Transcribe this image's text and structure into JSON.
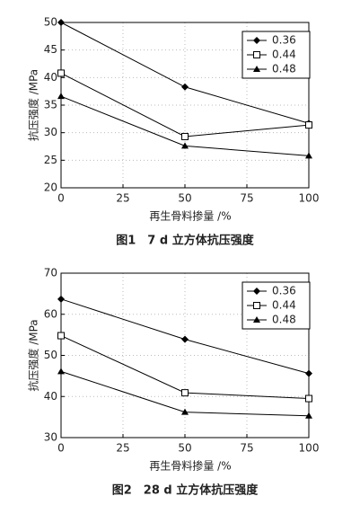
{
  "chart_data": [
    {
      "type": "line",
      "title": "图1　7 d 立方体抗压强度",
      "x_label": "再生骨料掺量 /%",
      "y_label": "抗压强度 /MPa",
      "x": [
        0,
        50,
        100
      ],
      "xlim": [
        0,
        100
      ],
      "xticks": [
        0,
        25,
        50,
        75,
        100
      ],
      "ylim": [
        20,
        50
      ],
      "yticks": [
        20,
        25,
        30,
        35,
        40,
        45,
        50
      ],
      "grid": true,
      "legend": "upper right",
      "series": [
        {
          "name": "0.36",
          "color": "#000000",
          "marker": "diamond",
          "values": [
            50,
            38.3,
            31.7
          ]
        },
        {
          "name": "0.44",
          "color": "#000000",
          "marker": "square",
          "values": [
            40.8,
            29.3,
            31.4
          ]
        },
        {
          "name": "0.48",
          "color": "#000000",
          "marker": "triangle",
          "values": [
            36.6,
            27.6,
            25.8
          ]
        }
      ]
    },
    {
      "type": "line",
      "title": "图2　28 d 立方体抗压强度",
      "x_label": "再生骨料掺量 /%",
      "y_label": "抗压强度 /MPa",
      "x": [
        0,
        50,
        100
      ],
      "xlim": [
        0,
        100
      ],
      "xticks": [
        0,
        25,
        50,
        75,
        100
      ],
      "ylim": [
        30,
        70
      ],
      "yticks": [
        30,
        40,
        50,
        60,
        70
      ],
      "grid": true,
      "legend": "upper right",
      "series": [
        {
          "name": "0.36",
          "color": "#000000",
          "marker": "diamond",
          "values": [
            63.7,
            53.9,
            45.6
          ]
        },
        {
          "name": "0.44",
          "color": "#000000",
          "marker": "square",
          "values": [
            54.8,
            40.9,
            39.5
          ]
        },
        {
          "name": "0.48",
          "color": "#000000",
          "marker": "triangle",
          "values": [
            46.1,
            36.2,
            35.3
          ]
        }
      ]
    }
  ]
}
